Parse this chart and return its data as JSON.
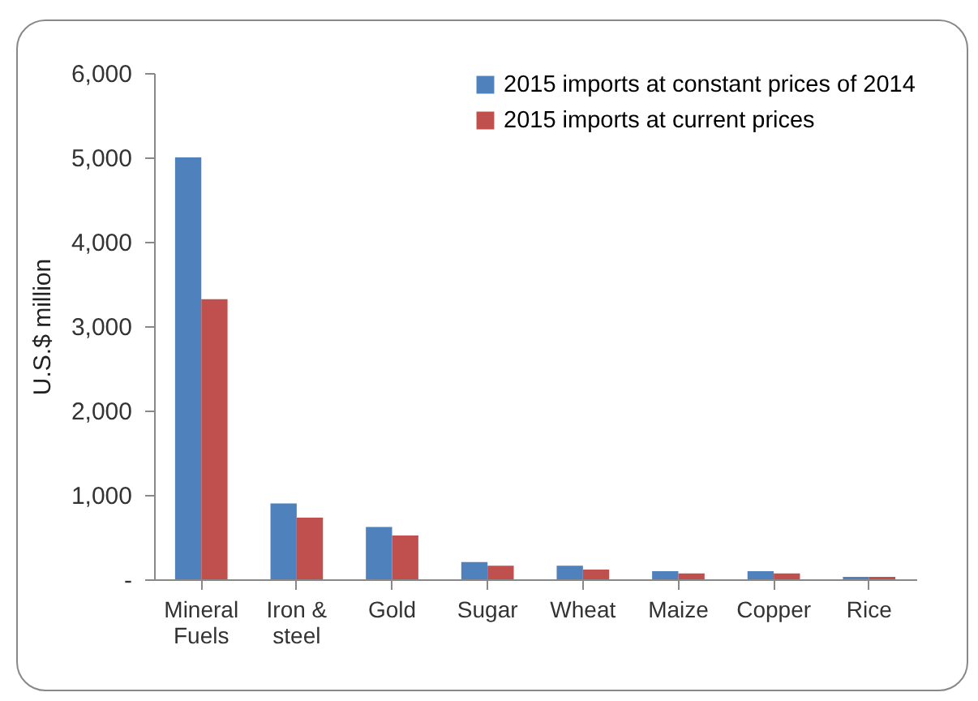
{
  "chart_data": {
    "type": "bar",
    "ylabel": "U.S.$ million",
    "categories": [
      "Mineral Fuels",
      "Iron & steel",
      "Gold",
      "Sugar",
      "Wheat",
      "Maize",
      "Copper",
      "Rice"
    ],
    "series": [
      {
        "name": "2015 imports at constant prices of 2014",
        "color": "#4f81bd",
        "values": [
          5000,
          900,
          620,
          205,
          160,
          95,
          95,
          30
        ]
      },
      {
        "name": "2015 imports at current prices",
        "color": "#c0504d",
        "values": [
          3320,
          730,
          520,
          160,
          115,
          70,
          70,
          30
        ]
      }
    ],
    "ylim": [
      0,
      6000
    ],
    "yticks": [
      {
        "value": 0,
        "label": "-"
      },
      {
        "value": 1000,
        "label": "1,000"
      },
      {
        "value": 2000,
        "label": "2,000"
      },
      {
        "value": 3000,
        "label": "3,000"
      },
      {
        "value": 4000,
        "label": "4,000"
      },
      {
        "value": 5000,
        "label": "5,000"
      },
      {
        "value": 6000,
        "label": "6,000"
      }
    ],
    "grid": false,
    "legend": "top right"
  }
}
